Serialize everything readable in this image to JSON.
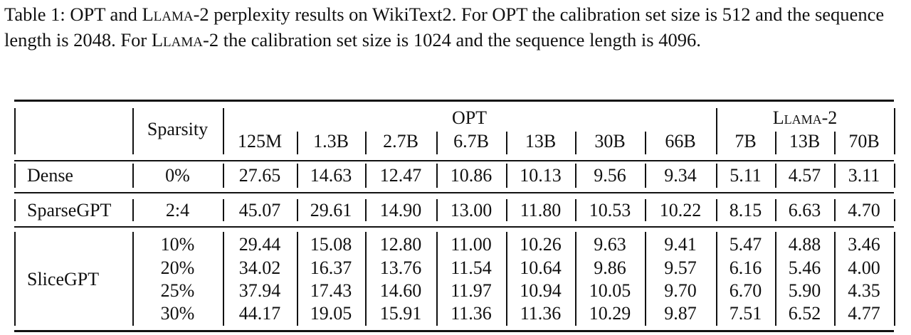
{
  "caption": {
    "label": "Table 1:",
    "text_1": "OPT and",
    "llama_name": "Llama-2",
    "text_2": "perplexity results on WikiText2. For OPT the calibration set size is 512 and the sequence length is 2048. For",
    "text_3": "the calibration set size is 1024 and the sequence length is 4096."
  },
  "table": {
    "sparsity_header": "Sparsity",
    "group_opt": "OPT",
    "group_llama": "Llama-2",
    "opt_models": [
      "125M",
      "1.3B",
      "2.7B",
      "6.7B",
      "13B",
      "30B",
      "66B"
    ],
    "llama_models": [
      "7B",
      "13B",
      "70B"
    ],
    "rows": [
      {
        "method": "Dense",
        "sparsity": [
          "0%"
        ],
        "values": [
          [
            "27.65",
            "14.63",
            "12.47",
            "10.86",
            "10.13",
            "9.56",
            "9.34",
            "5.11",
            "4.57",
            "3.11"
          ]
        ]
      },
      {
        "method": "SparseGPT",
        "sparsity": [
          "2:4"
        ],
        "values": [
          [
            "45.07",
            "29.61",
            "14.90",
            "13.00",
            "11.80",
            "10.53",
            "10.22",
            "8.15",
            "6.63",
            "4.70"
          ]
        ]
      },
      {
        "method": "SliceGPT",
        "sparsity": [
          "10%",
          "20%",
          "25%",
          "30%"
        ],
        "values": [
          [
            "29.44",
            "15.08",
            "12.80",
            "11.00",
            "10.26",
            "9.63",
            "9.41",
            "5.47",
            "4.88",
            "3.46"
          ],
          [
            "34.02",
            "16.37",
            "13.76",
            "11.54",
            "10.64",
            "9.86",
            "9.57",
            "6.16",
            "5.46",
            "4.00"
          ],
          [
            "37.94",
            "17.43",
            "14.60",
            "11.97",
            "10.94",
            "10.05",
            "9.70",
            "6.70",
            "5.90",
            "4.35"
          ],
          [
            "44.17",
            "19.05",
            "15.91",
            "11.36",
            "11.36",
            "10.29",
            "9.87",
            "7.51",
            "6.52",
            "4.77"
          ]
        ]
      }
    ]
  }
}
